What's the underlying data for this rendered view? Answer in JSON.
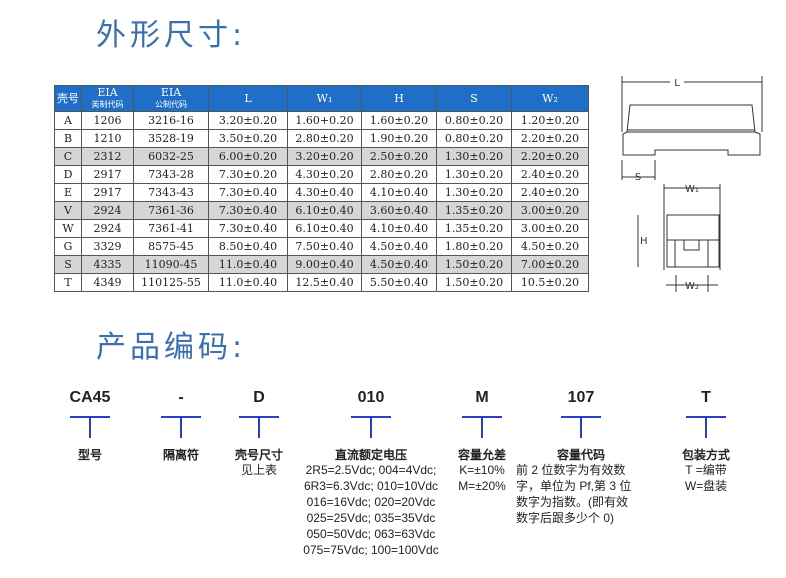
{
  "dimensions": {
    "title": "外形尺寸:",
    "headers": [
      {
        "main": "壳号",
        "sub": ""
      },
      {
        "main": "EIA",
        "sub": "英制代码"
      },
      {
        "main": "EIA",
        "sub": "公制代码"
      },
      {
        "main": "L",
        "sub": ""
      },
      {
        "main": "W₁",
        "sub": ""
      },
      {
        "main": "H",
        "sub": ""
      },
      {
        "main": "S",
        "sub": ""
      },
      {
        "main": "W₂",
        "sub": ""
      }
    ],
    "rows": [
      [
        "A",
        "1206",
        "3216-16",
        "3.20±0.20",
        "1.60+0.20",
        "1.60±0.20",
        "0.80±0.20",
        "1.20±0.20"
      ],
      [
        "B",
        "1210",
        "3528-19",
        "3.50±0.20",
        "2.80±0.20",
        "1.90±0.20",
        "0.80±0.20",
        "2.20±0.20"
      ],
      [
        "C",
        "2312",
        "6032-25",
        "6.00±0.20",
        "3.20±0.20",
        "2.50±0.20",
        "1.30±0.20",
        "2.20±0.20"
      ],
      [
        "D",
        "2917",
        "7343-28",
        "7.30±0.20",
        "4.30±0.20",
        "2.80±0.20",
        "1.30±0.20",
        "2.40±0.20"
      ],
      [
        "E",
        "2917",
        "7343-43",
        "7.30±0.40",
        "4.30±0.40",
        "4.10±0.40",
        "1.30±0.20",
        "2.40±0.20"
      ],
      [
        "V",
        "2924",
        "7361-36",
        "7.30±0.40",
        "6.10±0.40",
        "3.60±0.40",
        "1.35±0.20",
        "3.00±0.20"
      ],
      [
        "W",
        "2924",
        "7361-41",
        "7.30±0.40",
        "6.10±0.40",
        "4.10±0.40",
        "1.35±0.20",
        "3.00±0.20"
      ],
      [
        "G",
        "3329",
        "8575-45",
        "8.50±0.40",
        "7.50±0.40",
        "4.50±0.40",
        "1.80±0.20",
        "4.50±0.20"
      ],
      [
        "S",
        "4335",
        "11090-45",
        "11.0±0.40",
        "9.00±0.40",
        "4.50±0.40",
        "1.50±0.20",
        "7.00±0.20"
      ],
      [
        "T",
        "4349",
        "110125-55",
        "11.0±0.40",
        "12.5±0.40",
        "5.50±0.40",
        "1.50±0.20",
        "10.5±0.20"
      ]
    ],
    "highlighted_rows": [
      "C",
      "V",
      "S"
    ],
    "diagram_labels": {
      "L": "L",
      "S": "S",
      "W1": "W₁",
      "H": "H",
      "W2": "W₂"
    }
  },
  "part_code": {
    "title": "产品编码:",
    "segments": [
      {
        "code": "CA45",
        "label": "型号",
        "desc": []
      },
      {
        "code": "-",
        "label": "隔离符",
        "desc": []
      },
      {
        "code": "D",
        "label": "壳号尺寸",
        "desc": [
          "见上表"
        ]
      },
      {
        "code": "010",
        "label": "直流额定电压",
        "desc": [
          "2R5=2.5Vdc; 004=4Vdc;",
          "6R3=6.3Vdc; 010=10Vdc",
          "016=16Vdc; 020=20Vdc",
          "025=25Vdc; 035=35Vdc",
          "050=50Vdc; 063=63Vdc",
          "075=75Vdc; 100=100Vdc"
        ]
      },
      {
        "code": "M",
        "label": "容量允差",
        "desc": [
          "K=±10%",
          "M=±20%"
        ]
      },
      {
        "code": "107",
        "label": "容量代码",
        "desc": [
          "前 2 位数字为有效数",
          "字，单位为 Pf,第 3 位",
          "数字为指数。(即有效",
          "数字后跟多少个 0)"
        ]
      },
      {
        "code": "T",
        "label": "包装方式",
        "desc": [
          "T =编带",
          "W=盘装"
        ]
      }
    ]
  },
  "colors": {
    "title": "#3a6fb0",
    "header": "#1f6fc8",
    "tee": "#2a3fc8"
  }
}
